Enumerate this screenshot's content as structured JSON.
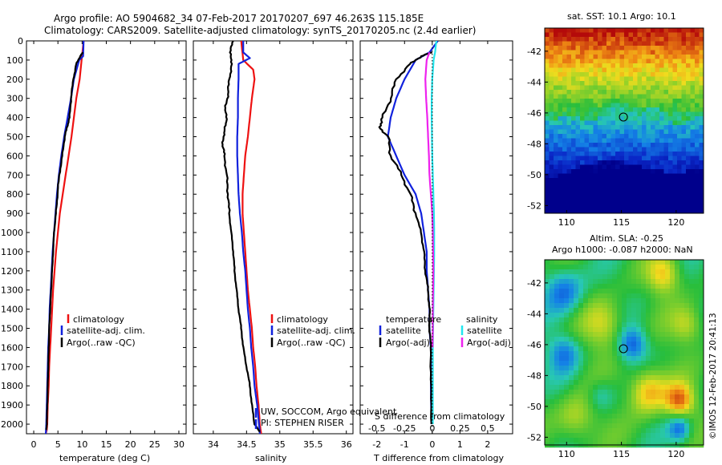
{
  "header": {
    "line1": "Argo profile: AO 5904682_34 07-Feb-2017 20170207_697 46.263S 115.185E",
    "line2": "Climatology: CARS2009. Satellite-adjusted climatology: synTS_20170205.nc (2.4d earlier)"
  },
  "side_stamp": "©IMOS 12-Feb-2017 20:41:13",
  "colors": {
    "climatology": "#ee1111",
    "satellite": "#1122dd",
    "argo": "#000000",
    "sat_diff": "#22e6ee",
    "argo_s_diff": "#ee22ee"
  },
  "chart_data": [
    {
      "type": "line",
      "name": "temperature-profile",
      "xlabel": "temperature (deg C)",
      "ylabel": "",
      "xlim": [
        -1.5,
        31.5
      ],
      "ylim": [
        2050,
        0
      ],
      "xticks": [
        "0",
        "5",
        "10",
        "15",
        "20",
        "25",
        "30"
      ],
      "yticks": [
        "0",
        "100",
        "200",
        "300",
        "400",
        "500",
        "600",
        "700",
        "800",
        "900",
        "1000",
        "1100",
        "1200",
        "1300",
        "1400",
        "1500",
        "1600",
        "1700",
        "1800",
        "1900",
        "2000"
      ],
      "legend": [
        "climatology",
        "satellite-adj. clim.",
        "Argo(..raw -QC)"
      ],
      "legend_position": "lower-right",
      "series": [
        {
          "name": "climatology",
          "color": "#ee1111",
          "x": [
            10.3,
            10.1,
            9.9,
            9.5,
            8.8,
            8.3,
            7.8,
            7.2,
            6.6,
            6.0,
            5.4,
            5.0,
            4.6,
            4.3,
            4.0,
            3.8,
            3.6,
            3.4,
            3.2,
            3.1,
            2.9,
            2.8,
            2.7,
            2.6,
            2.5
          ],
          "y": [
            0,
            50,
            100,
            200,
            300,
            400,
            500,
            600,
            700,
            800,
            900,
            1000,
            1100,
            1200,
            1300,
            1400,
            1500,
            1600,
            1700,
            1800,
            1900,
            2000,
            2030,
            2040,
            2050
          ]
        },
        {
          "name": "satellite-adj. clim.",
          "color": "#1122dd",
          "x": [
            10.3,
            10.2,
            9.4,
            8.3,
            7.7,
            7.0,
            6.3,
            5.7,
            5.2,
            4.8,
            4.5,
            4.2,
            3.9,
            3.7,
            3.5,
            3.3,
            3.2,
            3.0,
            2.9,
            2.8,
            2.7,
            2.6,
            2.5
          ],
          "y": [
            0,
            80,
            100,
            200,
            300,
            400,
            500,
            600,
            700,
            800,
            900,
            1000,
            1100,
            1200,
            1300,
            1400,
            1500,
            1600,
            1700,
            1800,
            1900,
            2000,
            2050
          ]
        },
        {
          "name": "Argo(..raw -QC)",
          "color": "#000000",
          "x": [
            10.2,
            9.6,
            8.8,
            8.2,
            7.7,
            7.4,
            6.9,
            6.4,
            5.9,
            5.3,
            4.9,
            4.6,
            4.2,
            4.0,
            3.8,
            3.6,
            3.4,
            3.2,
            3.1,
            3.0,
            2.9,
            2.8,
            2.7,
            2.6
          ],
          "y": [
            60,
            80,
            120,
            200,
            300,
            400,
            450,
            500,
            600,
            700,
            800,
            900,
            1000,
            1100,
            1200,
            1300,
            1400,
            1500,
            1600,
            1700,
            1800,
            1900,
            2000,
            2030
          ]
        }
      ]
    },
    {
      "type": "line",
      "name": "salinity-profile",
      "xlabel": "salinity",
      "xlim": [
        33.7,
        36.1
      ],
      "ylim": [
        2050,
        0
      ],
      "xticks": [
        "34",
        "34.5",
        "35",
        "35.5",
        "36"
      ],
      "legend": [
        "climatology",
        "satellite-adj. clim.",
        "Argo(..raw -QC)"
      ],
      "legend_position": "lower-right",
      "annotations": [
        "UW, SOCCOM, Argo equivalent",
        "PI: STEPHEN RISER"
      ],
      "series": [
        {
          "name": "climatology",
          "color": "#ee1111",
          "x": [
            34.42,
            34.45,
            34.6,
            34.62,
            34.58,
            34.55,
            34.52,
            34.48,
            34.46,
            34.44,
            34.44,
            34.46,
            34.48,
            34.5,
            34.52,
            34.55,
            34.58,
            34.6,
            34.63,
            34.65,
            34.68,
            34.7,
            34.72
          ],
          "y": [
            0,
            100,
            150,
            200,
            300,
            400,
            500,
            600,
            700,
            800,
            900,
            1000,
            1100,
            1200,
            1300,
            1400,
            1500,
            1600,
            1700,
            1800,
            1900,
            2000,
            2050
          ]
        },
        {
          "name": "satellite-adj. clim.",
          "color": "#1122dd",
          "x": [
            34.45,
            34.45,
            34.55,
            34.38,
            34.38,
            34.37,
            34.37,
            34.36,
            34.36,
            34.37,
            34.38,
            34.4,
            34.43,
            34.45,
            34.48,
            34.5,
            34.52,
            34.55,
            34.57,
            34.6,
            34.62,
            34.66,
            34.7
          ],
          "y": [
            0,
            60,
            90,
            120,
            200,
            300,
            400,
            500,
            600,
            700,
            800,
            900,
            1000,
            1100,
            1200,
            1300,
            1400,
            1500,
            1600,
            1700,
            1800,
            1900,
            2050
          ]
        },
        {
          "name": "Argo(..raw -QC)",
          "color": "#000000",
          "x": [
            34.3,
            34.25,
            34.28,
            34.24,
            34.22,
            34.18,
            34.2,
            34.16,
            34.14,
            34.17,
            34.2,
            34.22,
            34.24,
            34.27,
            34.3,
            34.32,
            34.35,
            34.38,
            34.42,
            34.45,
            34.5,
            34.55,
            34.58,
            34.62,
            34.66,
            34.7
          ],
          "y": [
            0,
            60,
            120,
            200,
            280,
            350,
            420,
            480,
            540,
            600,
            700,
            800,
            900,
            1000,
            1100,
            1200,
            1300,
            1400,
            1500,
            1600,
            1700,
            1800,
            1900,
            2000,
            2020,
            2040
          ]
        }
      ]
    },
    {
      "type": "line",
      "name": "difference-profile",
      "xlabel": "T difference from climatology",
      "x2label": "S difference from climatology",
      "xlim": [
        -2.6,
        2.9
      ],
      "ylim": [
        2050,
        0
      ],
      "xticks": [
        "-2",
        "-1",
        "0",
        "1",
        "2"
      ],
      "x2ticks": [
        "-0.5",
        "-0.25",
        "0",
        "0.25",
        "0.5"
      ],
      "legend": [
        "temperature",
        "satellite",
        "Argo(-adj)",
        "salinity",
        "satellite",
        "Argo(-adj)"
      ],
      "legend_position": "lower-center",
      "series": [
        {
          "name": "temperature satellite",
          "color": "#1122dd",
          "x": [
            0.2,
            -0.1,
            -0.6,
            -1.0,
            -1.3,
            -1.5,
            -1.6,
            -1.3,
            -1.0,
            -0.6,
            -0.4,
            -0.3,
            -0.2,
            -0.2,
            -0.15,
            -0.1,
            -0.1,
            -0.05,
            -0.05,
            -0.05,
            -0.03
          ],
          "y": [
            0,
            60,
            100,
            200,
            300,
            400,
            500,
            600,
            700,
            800,
            900,
            1000,
            1100,
            1200,
            1300,
            1400,
            1500,
            1600,
            1700,
            1800,
            2000
          ]
        },
        {
          "name": "temperature Argo(-adj)",
          "color": "#000000",
          "x": [
            0.0,
            -0.4,
            -0.8,
            -1.3,
            -1.5,
            -1.8,
            -1.9,
            -1.6,
            -1.5,
            -1.1,
            -0.8,
            -0.6,
            -0.4,
            -0.3,
            -0.25,
            -0.15,
            -0.1,
            -0.1,
            -0.05,
            -0.05,
            -0.03
          ],
          "y": [
            60,
            80,
            120,
            200,
            300,
            400,
            450,
            500,
            600,
            700,
            800,
            900,
            1000,
            1100,
            1200,
            1300,
            1400,
            1500,
            1600,
            1800,
            2000
          ]
        },
        {
          "name": "salinity satellite",
          "color": "#22e6ee",
          "x": [
            0.15,
            0.1,
            0.05,
            0.0,
            -0.02,
            -0.02,
            -0.01,
            0.0,
            0.02,
            0.04,
            0.06,
            0.07,
            0.07,
            0.06,
            0.05,
            0.04,
            0.03,
            0.02,
            0.02,
            0.02
          ],
          "y": [
            0,
            60,
            100,
            200,
            300,
            400,
            500,
            600,
            700,
            800,
            900,
            1000,
            1100,
            1200,
            1300,
            1400,
            1500,
            1600,
            1800,
            2000
          ]
        },
        {
          "name": "salinity Argo(-adj)",
          "color": "#ee22ee",
          "x": [
            -0.1,
            -0.2,
            -0.25,
            -0.22,
            -0.18,
            -0.15,
            -0.12,
            -0.1,
            -0.05,
            0.0,
            0.02,
            0.03,
            0.04,
            0.03,
            0.02,
            0.02,
            0.01
          ],
          "y": [
            60,
            100,
            200,
            300,
            400,
            500,
            600,
            700,
            800,
            900,
            1000,
            1100,
            1200,
            1300,
            1400,
            1500,
            1600
          ]
        }
      ]
    },
    {
      "type": "heatmap",
      "name": "sst-map",
      "title": "sat. SST: 10.1  Argo: 10.1",
      "xlim": [
        108,
        122.5
      ],
      "ylim": [
        -52.5,
        -40.5
      ],
      "xticks": [
        "110",
        "115",
        "120"
      ],
      "yticks": [
        "-42",
        "-44",
        "-46",
        "-48",
        "-50",
        "-52"
      ],
      "marker": {
        "lon": 115.185,
        "lat": -46.263
      }
    },
    {
      "type": "heatmap",
      "name": "sla-map",
      "title": "Altim. SLA: -0.25",
      "subtitle": "Argo h1000: -0.087 h2000: NaN",
      "xlim": [
        108,
        122.5
      ],
      "ylim": [
        -52.5,
        -40.5
      ],
      "xticks": [
        "110",
        "115",
        "120"
      ],
      "yticks": [
        "-42",
        "-44",
        "-46",
        "-48",
        "-50",
        "-52"
      ],
      "marker": {
        "lon": 115.185,
        "lat": -46.263
      }
    }
  ]
}
